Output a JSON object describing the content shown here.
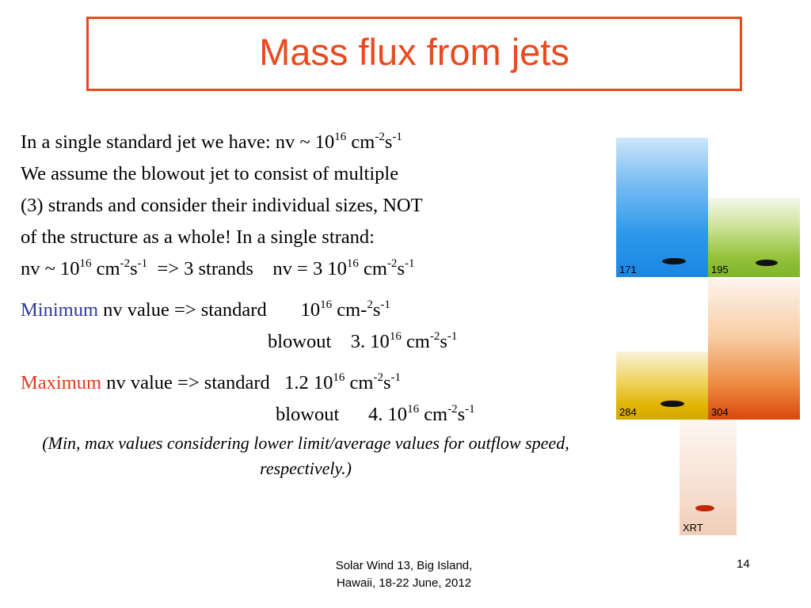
{
  "slide": {
    "title": "Mass flux from jets",
    "lines": {
      "l1_text": "In a single standard jet we have:   nv ~ 10",
      "l1_exp": "16",
      "l1_unit_a": " cm",
      "l1_exp2": "-2",
      "l1_unit_b": "s",
      "l1_exp3": "-1",
      "l2": "We assume the blowout jet to consist of multiple",
      "l3": "(3) strands and consider their individual sizes, NOT",
      "l4": "of the structure as a whole! In a single strand:",
      "l5_a": "nv ~ 10",
      "l5_exp": "16",
      "l5_b": " cm",
      "l5_exp2": "-2",
      "l5_c": "s",
      "l5_exp3": "-1",
      "l5_d": "  => 3 strands    nv = 3 10",
      "l5_exp4": "16",
      "l5_e": " cm",
      "l5_exp5": "-2",
      "l5_f": "s",
      "l5_exp6": "-1"
    },
    "minimum": {
      "label": "Minimum",
      "std_text": " nv value => standard       10",
      "std_exp": "16",
      "std_unit_a": " cm-",
      "std_exp2": "2",
      "std_unit_b": "s",
      "std_exp3": "-1",
      "blow_text": "blowout    3. 10",
      "blow_exp": "16",
      "blow_unit_a": " cm",
      "blow_exp2": "-2",
      "blow_unit_b": "s",
      "blow_exp3": "-1"
    },
    "maximum": {
      "label": "Maximum",
      "std_text": " nv value => standard   1.2 10",
      "std_exp": "16",
      "std_unit_a": " cm",
      "std_exp2": "-2",
      "std_unit_b": "s",
      "std_exp3": "-1",
      "blow_text": "blowout      4. 10",
      "blow_exp": "16",
      "blow_unit_a": " cm",
      "blow_exp2": "-2",
      "blow_unit_b": "s",
      "blow_exp3": "-1"
    },
    "note": "(Min, max values considering lower limit/average values for outflow speed, respectively.)",
    "footer": {
      "line1": "Solar Wind 13,  Big Island,",
      "line2": "Hawaii, 18-22 June, 2012",
      "page": "14"
    },
    "images": [
      {
        "label": "171",
        "color": "#1a8ce8"
      },
      {
        "label": "195",
        "color": "#7fb52a"
      },
      {
        "label": "284",
        "color": "#e0b400"
      },
      {
        "label": "304",
        "color": "#e85a10"
      },
      {
        "label": "XRT",
        "color": "#e07040"
      }
    ],
    "colors": {
      "accent": "#ea4a1f",
      "minimum": "#2d3a9e",
      "maximum": "#e8391b"
    }
  }
}
